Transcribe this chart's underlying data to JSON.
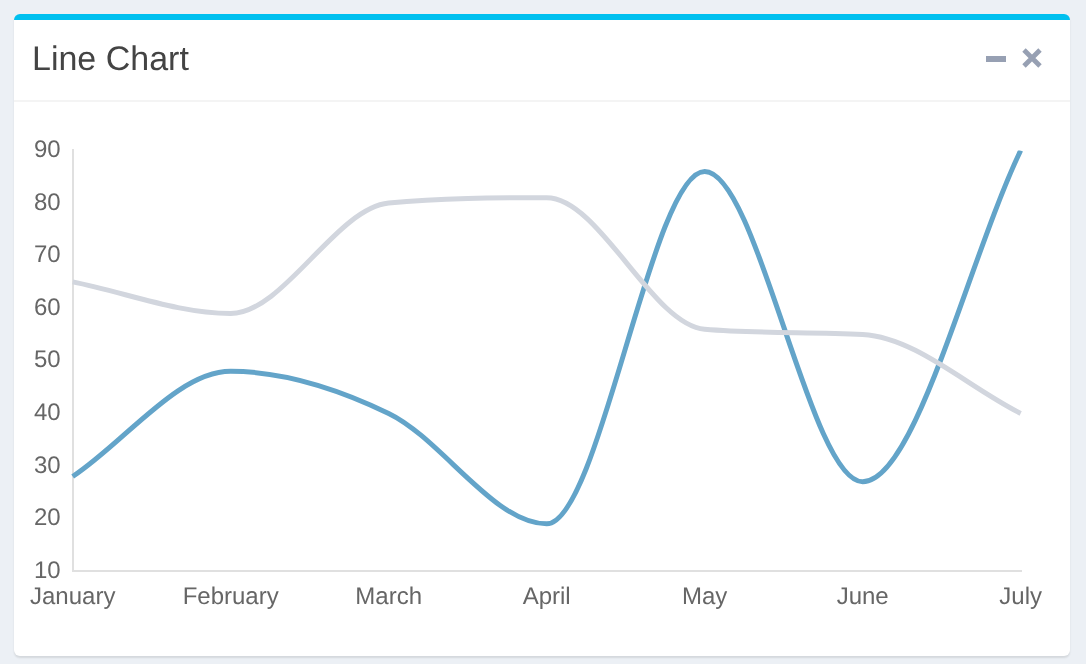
{
  "chart_data": {
    "type": "line",
    "title": "Line Chart",
    "categories": [
      "January",
      "February",
      "March",
      "April",
      "May",
      "June",
      "July"
    ],
    "series": [
      {
        "color": "#d2d6de",
        "values": [
          65,
          59,
          80,
          81,
          56,
          55,
          40
        ]
      },
      {
        "color": "#63a4c9",
        "values": [
          28,
          48,
          40,
          19,
          86,
          27,
          90
        ]
      }
    ],
    "ylim": [
      10,
      90
    ],
    "yticks": [
      10,
      20,
      30,
      40,
      50,
      60,
      70,
      80,
      90
    ],
    "grid": false,
    "legend": false,
    "marker": "none",
    "line_style": "solid"
  }
}
